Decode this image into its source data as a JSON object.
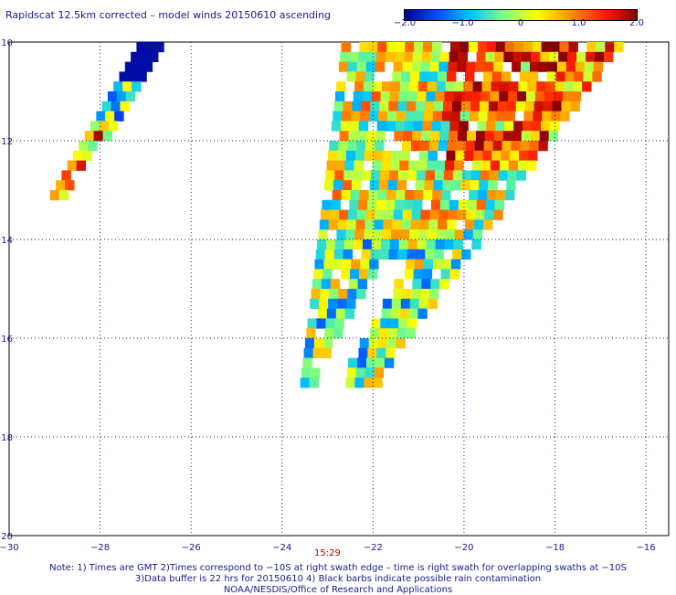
{
  "title": "Rapidscat 12.5km corrected – model winds 20150610 ascending",
  "colorbar": {
    "ticks": [
      "−2.0",
      "−1.0",
      "0",
      "1.0",
      "2.0"
    ],
    "colors": [
      "#00008f",
      "#0050ff",
      "#00c8ff",
      "#7fff7f",
      "#ffff00",
      "#ff9000",
      "#ff2000",
      "#8b0000"
    ]
  },
  "axes": {
    "x_ticks": [
      "−30",
      "−28",
      "−26",
      "−24",
      "−22",
      "−20",
      "−18",
      "−16"
    ],
    "y_ticks": [
      "−10",
      "−12",
      "−14",
      "−16",
      "−18",
      "−20"
    ],
    "x_range": [
      -30,
      -15.5
    ],
    "y_range": [
      -20,
      -10
    ]
  },
  "time_label": "15:29",
  "notes": [
    "Note: 1) Times are GMT 2)Times correspond to −10S at right swath edge – time is right swath for overlapping swaths at −10S",
    "3)Data buffer is 22 hrs for 20150610 4) Black barbs indicate possible rain contamination",
    "NOAA/NESDIS/Office of Research and Applications"
  ],
  "swaths": [
    {
      "name": "west-swath",
      "lon_edges": [
        -29.1,
        -28.0,
        -26.8,
        -26.0
      ],
      "lat_range": [
        -13.0,
        -10.0
      ]
    },
    {
      "name": "east-swath",
      "lon_edges": [
        -23.6,
        -22.0,
        -16.7,
        -18.5
      ],
      "lat_range": [
        -16.8,
        -10.0
      ]
    }
  ]
}
